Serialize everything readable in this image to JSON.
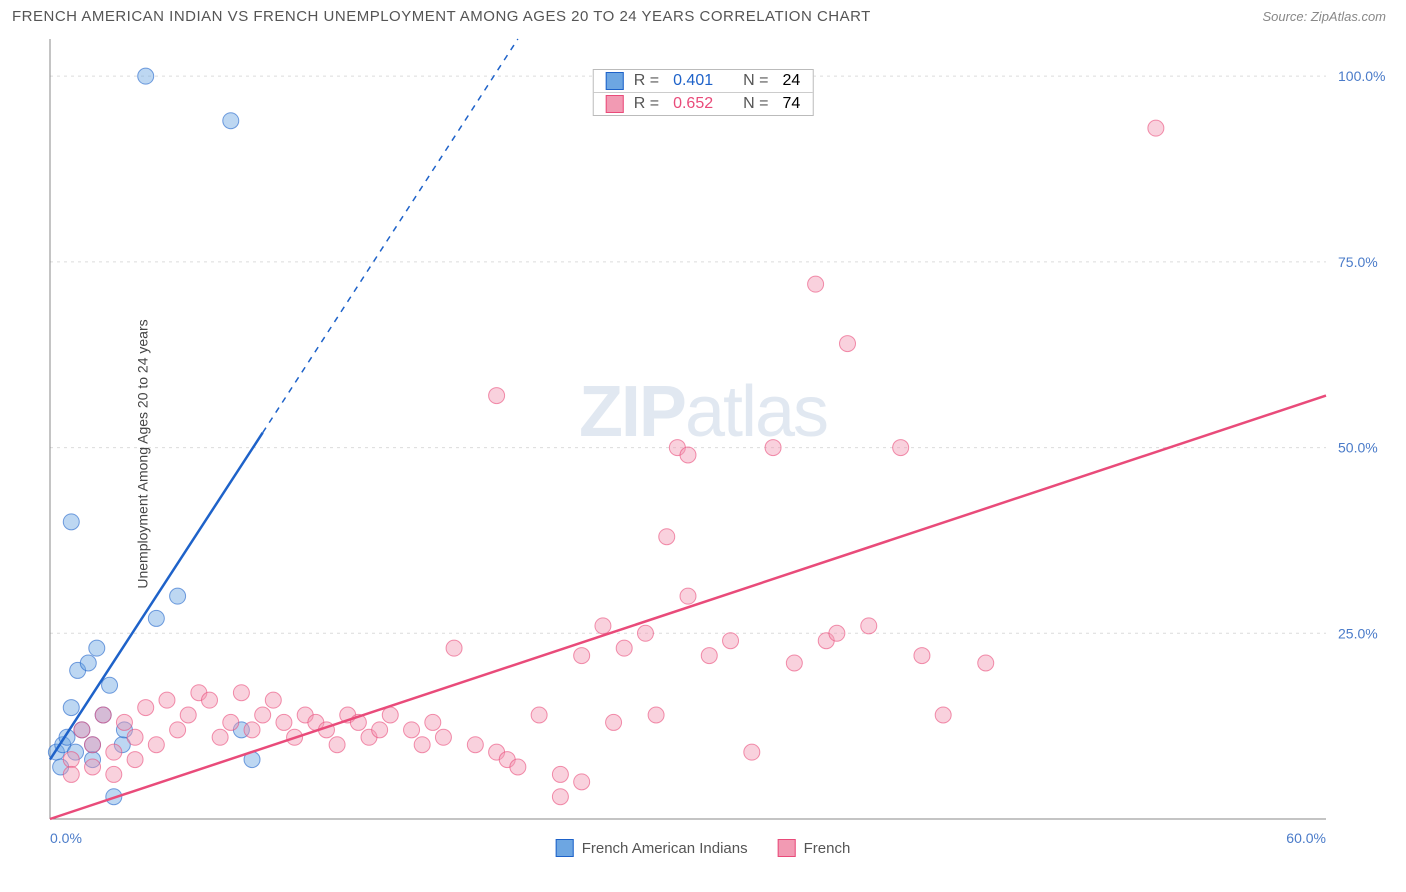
{
  "title": "FRENCH AMERICAN INDIAN VS FRENCH UNEMPLOYMENT AMONG AGES 20 TO 24 YEARS CORRELATION CHART",
  "source": "Source: ZipAtlas.com",
  "ylabel": "Unemployment Among Ages 20 to 24 years",
  "watermark_a": "ZIP",
  "watermark_b": "atlas",
  "chart": {
    "type": "scatter",
    "xlim": [
      0,
      60
    ],
    "ylim": [
      0,
      105
    ],
    "xticks": [
      {
        "v": 0,
        "label": "0.0%"
      },
      {
        "v": 60,
        "label": "60.0%"
      }
    ],
    "yticks": [
      {
        "v": 25,
        "label": "25.0%"
      },
      {
        "v": 50,
        "label": "50.0%"
      },
      {
        "v": 75,
        "label": "75.0%"
      },
      {
        "v": 100,
        "label": "100.0%"
      }
    ],
    "grid_color": "#dcdcdc",
    "background_color": "#ffffff",
    "axis_color": "#888888",
    "tick_label_color": "#4a7bc9",
    "marker_radius": 8,
    "marker_opacity": 0.45,
    "line_width": 2.5,
    "dash_pattern": "6 6"
  },
  "series": [
    {
      "name": "French American Indians",
      "color": "#6da6e2",
      "line_color": "#1e62c9",
      "r_label": "R =",
      "r_value": "0.401",
      "n_label": "N =",
      "n_value": "24",
      "trend": {
        "x1": 0,
        "y1": 8,
        "x2_solid": 10,
        "y2_solid": 52,
        "x2_dash": 22,
        "y2_dash": 105
      },
      "points": [
        [
          0.3,
          9
        ],
        [
          0.6,
          10
        ],
        [
          0.8,
          11
        ],
        [
          1.0,
          15
        ],
        [
          1.2,
          9
        ],
        [
          1.3,
          20
        ],
        [
          1.5,
          12
        ],
        [
          1.8,
          21
        ],
        [
          2.0,
          10
        ],
        [
          2.2,
          23
        ],
        [
          2.5,
          14
        ],
        [
          2.8,
          18
        ],
        [
          3.4,
          10
        ],
        [
          1.0,
          40
        ],
        [
          4.5,
          100
        ],
        [
          8.5,
          94
        ],
        [
          5.0,
          27
        ],
        [
          6.0,
          30
        ],
        [
          2.0,
          8
        ],
        [
          3.0,
          3
        ],
        [
          3.5,
          12
        ],
        [
          0.5,
          7
        ],
        [
          9.0,
          12
        ],
        [
          9.5,
          8
        ]
      ]
    },
    {
      "name": "French",
      "color": "#f29ab3",
      "line_color": "#e94b7a",
      "r_label": "R =",
      "r_value": "0.652",
      "n_label": "N =",
      "n_value": "74",
      "trend": {
        "x1": 0,
        "y1": 0,
        "x2_solid": 60,
        "y2_solid": 57,
        "x2_dash": 60,
        "y2_dash": 57
      },
      "points": [
        [
          1,
          8
        ],
        [
          1.5,
          12
        ],
        [
          2,
          10
        ],
        [
          2.5,
          14
        ],
        [
          3,
          9
        ],
        [
          3.5,
          13
        ],
        [
          4,
          11
        ],
        [
          4.5,
          15
        ],
        [
          5,
          10
        ],
        [
          5.5,
          16
        ],
        [
          6,
          12
        ],
        [
          6.5,
          14
        ],
        [
          7,
          17
        ],
        [
          7.5,
          16
        ],
        [
          8,
          11
        ],
        [
          8.5,
          13
        ],
        [
          9,
          17
        ],
        [
          9.5,
          12
        ],
        [
          10,
          14
        ],
        [
          10.5,
          16
        ],
        [
          11,
          13
        ],
        [
          11.5,
          11
        ],
        [
          12,
          14
        ],
        [
          12.5,
          13
        ],
        [
          13,
          12
        ],
        [
          13.5,
          10
        ],
        [
          14,
          14
        ],
        [
          14.5,
          13
        ],
        [
          15,
          11
        ],
        [
          15.5,
          12
        ],
        [
          16,
          14
        ],
        [
          17,
          12
        ],
        [
          17.5,
          10
        ],
        [
          18,
          13
        ],
        [
          18.5,
          11
        ],
        [
          19,
          23
        ],
        [
          20,
          10
        ],
        [
          21,
          9
        ],
        [
          21.5,
          8
        ],
        [
          21,
          57
        ],
        [
          22,
          7
        ],
        [
          23,
          14
        ],
        [
          24,
          6
        ],
        [
          25,
          5
        ],
        [
          25,
          22
        ],
        [
          26,
          26
        ],
        [
          26.5,
          13
        ],
        [
          27,
          23
        ],
        [
          28,
          25
        ],
        [
          28.5,
          14
        ],
        [
          29,
          38
        ],
        [
          29.5,
          50
        ],
        [
          30,
          30
        ],
        [
          30,
          49
        ],
        [
          31,
          22
        ],
        [
          32,
          24
        ],
        [
          33,
          9
        ],
        [
          34,
          50
        ],
        [
          35,
          21
        ],
        [
          36,
          72
        ],
        [
          36.5,
          24
        ],
        [
          37,
          25
        ],
        [
          37.5,
          64
        ],
        [
          38.5,
          26
        ],
        [
          40,
          50
        ],
        [
          41,
          22
        ],
        [
          42,
          14
        ],
        [
          44,
          21
        ],
        [
          52,
          93
        ],
        [
          1,
          6
        ],
        [
          2,
          7
        ],
        [
          3,
          6
        ],
        [
          4,
          8
        ],
        [
          24,
          3
        ]
      ]
    }
  ],
  "legend": {
    "items": [
      {
        "label": "French American Indians",
        "color": "#6da6e2"
      },
      {
        "label": "French",
        "color": "#f29ab3"
      }
    ]
  }
}
